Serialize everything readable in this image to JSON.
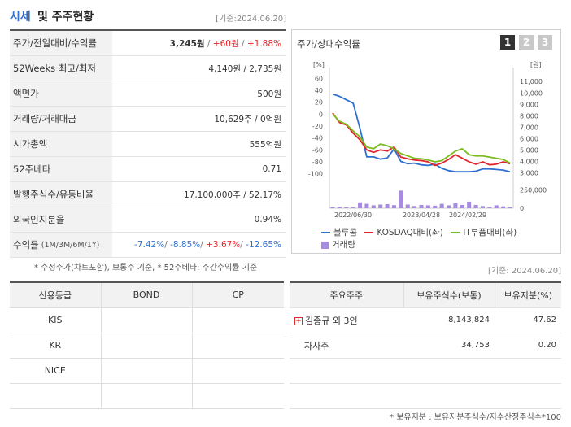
{
  "header": {
    "title_a": "시세",
    "title_b": "및 주주현황",
    "date": "[기준:2024.06.20]"
  },
  "quote": [
    {
      "label": "주가/전일대비/수익률",
      "price": "3,245원",
      "change": "+60원",
      "ret": "+1.88%"
    },
    {
      "label": "52Weeks 최고/최저",
      "value": "4,140원 / 2,735원"
    },
    {
      "label": "액면가",
      "value": "500원"
    },
    {
      "label": "거래량/거래대금",
      "value": "10,629주 / 0억원"
    },
    {
      "label": "시가총액",
      "value": "555억원"
    },
    {
      "label": "52주베타",
      "value": "0.71"
    },
    {
      "label": "발행주식수/유동비율",
      "value": "17,100,000주 / 52.17%"
    },
    {
      "label": "외국인지분율",
      "value": "0.94%"
    },
    {
      "label": "수익률",
      "sub": "(1M/3M/6M/1Y)",
      "r1": "-7.42%",
      "r2": "-8.85%",
      "r3": "+3.67%",
      "r4": "-12.65%"
    }
  ],
  "note1": "* 수정주가(차트포함), 보통주 기준, * 52주베타: 주간수익률 기준",
  "note1_date": "[기준: 2024.06.20]",
  "chart_box": {
    "title": "주가/상대수익률",
    "pages": [
      "1",
      "2",
      "3"
    ]
  },
  "chart_data": {
    "type": "line",
    "x_ticks": [
      "2022/06/30",
      "2023/04/28",
      "2024/02/29"
    ],
    "left_axis": {
      "unit": "[%]",
      "ticks": [
        60,
        40,
        20,
        0,
        -20,
        -40,
        -60,
        -80,
        -100
      ],
      "range": [
        -110,
        70
      ]
    },
    "right_axis": {
      "unit": "[원]",
      "ticks": [
        11000,
        10000,
        9000,
        8000,
        7000,
        6000,
        5000,
        4000,
        3000
      ],
      "range": [
        2400,
        11800
      ]
    },
    "volume_axis": {
      "ticks": [
        250000,
        0
      ],
      "range": [
        0,
        300000
      ]
    },
    "series": [
      {
        "name": "블루콤",
        "color": "#2e6fd0",
        "axis": "right",
        "values": [
          9900,
          9700,
          9400,
          9100,
          6900,
          4400,
          4400,
          4200,
          4300,
          5100,
          4000,
          3800,
          3850,
          3700,
          3650,
          3750,
          3400,
          3200,
          3100,
          3100,
          3100,
          3150,
          3350,
          3350,
          3300,
          3250,
          3100
        ]
      },
      {
        "name": "KOSDAQ대비(좌)",
        "color": "#e0262a",
        "axis": "left",
        "values": [
          2,
          -14,
          -18,
          -32,
          -43,
          -60,
          -64,
          -60,
          -62,
          -55,
          -72,
          -75,
          -77,
          -78,
          -80,
          -86,
          -82,
          -76,
          -68,
          -74,
          -80,
          -84,
          -80,
          -85,
          -84,
          -80,
          -83
        ]
      },
      {
        "name": "IT부품대비(좌)",
        "color": "#7cbb1f",
        "axis": "left",
        "values": [
          0,
          -12,
          -17,
          -28,
          -38,
          -55,
          -58,
          -50,
          -53,
          -58,
          -66,
          -70,
          -74,
          -75,
          -77,
          -80,
          -78,
          -70,
          -62,
          -58,
          -68,
          -70,
          -70,
          -72,
          -74,
          -76,
          -82
        ]
      },
      {
        "name": "거래량",
        "color": "#a68be0",
        "axis": "volume",
        "values": [
          15000,
          18000,
          12000,
          10000,
          80000,
          60000,
          40000,
          50000,
          55000,
          42000,
          240000,
          50000,
          30000,
          45000,
          40000,
          35000,
          60000,
          40000,
          70000,
          45000,
          90000,
          45000,
          30000,
          20000,
          40000,
          25000,
          15000
        ]
      }
    ]
  },
  "credit": {
    "headers": [
      "신용등급",
      "BOND",
      "CP"
    ],
    "rows": [
      [
        "KIS",
        "",
        ""
      ],
      [
        "KR",
        "",
        ""
      ],
      [
        "NICE",
        "",
        ""
      ],
      [
        "",
        "",
        ""
      ]
    ]
  },
  "holders": {
    "headers": [
      "주요주주",
      "보유주식수(보통)",
      "보유지분(%)"
    ],
    "rows": [
      {
        "name": "김종규 외 3인",
        "shares": "8,143,824",
        "pct": "47.62",
        "expand": "+"
      },
      {
        "name": "자사주",
        "shares": "34,753",
        "pct": "0.20",
        "expand": ""
      },
      {
        "name": "",
        "shares": "",
        "pct": "",
        "expand": ""
      },
      {
        "name": "",
        "shares": "",
        "pct": "",
        "expand": ""
      }
    ]
  },
  "note2": "* 보유지분 : 보유지분주식수/지수산정주식수*100"
}
